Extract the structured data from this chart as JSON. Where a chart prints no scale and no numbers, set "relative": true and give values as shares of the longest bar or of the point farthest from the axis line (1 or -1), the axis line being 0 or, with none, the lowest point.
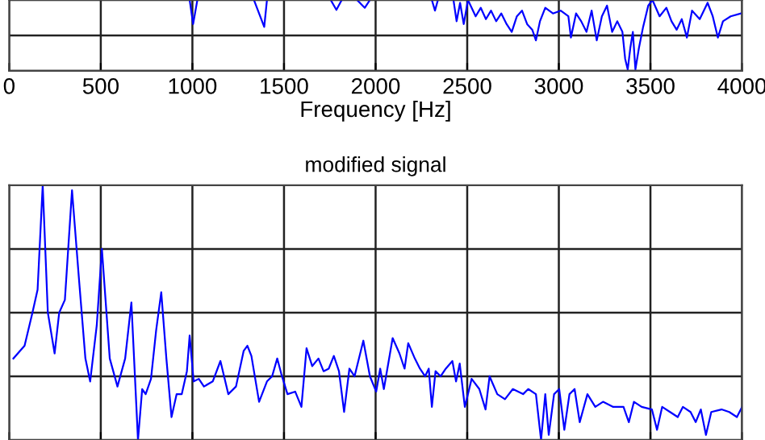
{
  "chart_data": [
    {
      "type": "line",
      "xlabel": "Frequency [Hz]",
      "relative": true,
      "xlim": [
        0,
        4000
      ],
      "xticks": [
        0,
        500,
        1000,
        1500,
        2000,
        2500,
        3000,
        3500,
        4000
      ],
      "tick_labels": "x",
      "grid": true,
      "line_style": "solid",
      "series": [
        {
          "color": "#0000ff",
          "x": [
            985,
            1004,
            1027,
            1100,
            1336,
            1392,
            1407,
            1500,
            1755,
            1786,
            1815,
            1850,
            1899,
            1941,
            1969,
            2100,
            2307,
            2324,
            2340,
            2380,
            2425,
            2442,
            2461,
            2481,
            2504,
            2546,
            2574,
            2602,
            2630,
            2658,
            2686,
            2715,
            2743,
            2771,
            2799,
            2827,
            2855,
            2875,
            2897,
            2926,
            2968,
            3010,
            3052,
            3066,
            3094,
            3122,
            3151,
            3179,
            3207,
            3235,
            3263,
            3291,
            3319,
            3347,
            3362,
            3376,
            3390,
            3404,
            3418,
            3437,
            3460,
            3488,
            3511,
            3550,
            3587,
            3615,
            3643,
            3671,
            3699,
            3727,
            3769,
            3812,
            3840,
            3868,
            3896,
            3938,
            3994
          ],
          "values": [
            1.0,
            0.66,
            1.0,
            null,
            1.0,
            0.62,
            1.0,
            null,
            1.0,
            0.86,
            1.0,
            null,
            1.0,
            0.89,
            1.0,
            null,
            1.0,
            0.85,
            1.0,
            null,
            1.0,
            0.7,
            0.96,
            0.66,
            1.0,
            0.77,
            0.89,
            0.73,
            0.85,
            0.7,
            0.81,
            0.66,
            0.55,
            0.77,
            0.85,
            0.66,
            0.58,
            0.43,
            0.7,
            0.89,
            0.81,
            0.85,
            0.77,
            0.47,
            0.81,
            0.7,
            0.55,
            0.85,
            0.43,
            0.77,
            0.92,
            0.55,
            0.7,
            0.55,
            0.17,
            0.02,
            0.32,
            0.55,
            0.02,
            0.32,
            0.62,
            0.92,
            1.0,
            0.77,
            0.89,
            0.7,
            0.58,
            0.73,
            0.47,
            0.85,
            0.73,
            0.96,
            0.77,
            0.47,
            0.7,
            0.77,
            0.81
          ]
        }
      ]
    },
    {
      "type": "line",
      "title": "modified signal",
      "relative": true,
      "xlim": [
        0,
        4000
      ],
      "xticks": [
        0,
        500,
        1000,
        1500,
        2000,
        2500,
        3000,
        3500,
        4000
      ],
      "tick_labels": false,
      "grid": true,
      "line_style": "solid",
      "series": [
        {
          "color": "#0000ff",
          "x": [
            23,
            84,
            127,
            155,
            183,
            211,
            248,
            273,
            304,
            343,
            380,
            416,
            442,
            478,
            506,
            549,
            591,
            633,
            667,
            703,
            726,
            745,
            774,
            802,
            830,
            858,
            886,
            914,
            942,
            970,
            985,
            1007,
            1035,
            1063,
            1111,
            1153,
            1196,
            1238,
            1280,
            1300,
            1322,
            1364,
            1407,
            1435,
            1463,
            1485,
            1519,
            1561,
            1595,
            1623,
            1654,
            1688,
            1716,
            1744,
            1772,
            1800,
            1828,
            1857,
            1885,
            1933,
            1969,
            2003,
            2025,
            2045,
            2093,
            2130,
            2158,
            2178,
            2214,
            2242,
            2270,
            2290,
            2307,
            2327,
            2355,
            2383,
            2419,
            2439,
            2459,
            2487,
            2524,
            2566,
            2600,
            2622,
            2664,
            2706,
            2749,
            2805,
            2833,
            2875,
            2903,
            2926,
            2945,
            2974,
            3002,
            3030,
            3058,
            3086,
            3114,
            3156,
            3199,
            3241,
            3297,
            3353,
            3382,
            3410,
            3452,
            3508,
            3536,
            3564,
            3607,
            3649,
            3677,
            3719,
            3747,
            3775,
            3803,
            3832,
            3888,
            3930,
            3972,
            4000
          ],
          "values": [
            0.32,
            0.37,
            0.5,
            0.59,
            1.0,
            0.5,
            0.34,
            0.5,
            0.55,
            0.98,
            0.64,
            0.32,
            0.23,
            0.45,
            0.75,
            0.32,
            0.21,
            0.32,
            0.54,
            0.0,
            0.2,
            0.18,
            0.24,
            0.43,
            0.58,
            0.32,
            0.09,
            0.18,
            0.18,
            0.27,
            0.41,
            0.23,
            0.24,
            0.21,
            0.23,
            0.31,
            0.18,
            0.21,
            0.35,
            0.37,
            0.33,
            0.15,
            0.23,
            0.25,
            0.32,
            0.26,
            0.18,
            0.19,
            0.13,
            0.36,
            0.29,
            0.32,
            0.27,
            0.28,
            0.33,
            0.27,
            0.11,
            0.28,
            0.25,
            0.39,
            0.25,
            0.19,
            0.28,
            0.2,
            0.4,
            0.34,
            0.28,
            0.38,
            0.32,
            0.28,
            0.25,
            0.28,
            0.13,
            0.27,
            0.25,
            0.28,
            0.31,
            0.23,
            0.3,
            0.13,
            0.24,
            0.2,
            0.12,
            0.25,
            0.18,
            0.16,
            0.2,
            0.18,
            0.2,
            0.18,
            0.0,
            0.18,
            0.02,
            0.18,
            0.2,
            0.04,
            0.18,
            0.2,
            0.07,
            0.18,
            0.13,
            0.15,
            0.13,
            0.13,
            0.07,
            0.15,
            0.13,
            0.12,
            0.04,
            0.13,
            0.11,
            0.09,
            0.13,
            0.11,
            0.07,
            0.12,
            0.02,
            0.11,
            0.12,
            0.11,
            0.09,
            0.13
          ]
        }
      ]
    }
  ]
}
